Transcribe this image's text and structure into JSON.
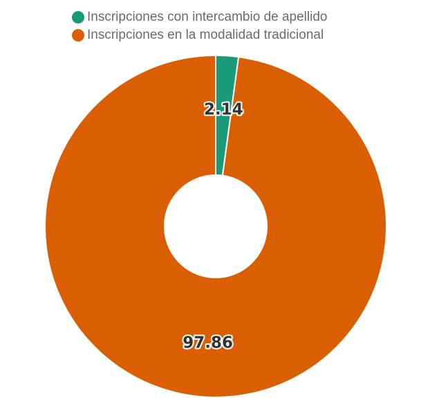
{
  "chart_data": {
    "type": "pie",
    "variant": "donut",
    "categories": [
      "Inscripciones con intercambio de apellido",
      "Inscripciones en la modalidad tradicional"
    ],
    "values": [
      2.14,
      97.86
    ],
    "data_labels": [
      "2.14",
      "97.86"
    ],
    "colors": [
      "#1a9a78",
      "#d95f02"
    ],
    "legend_position": "top"
  }
}
